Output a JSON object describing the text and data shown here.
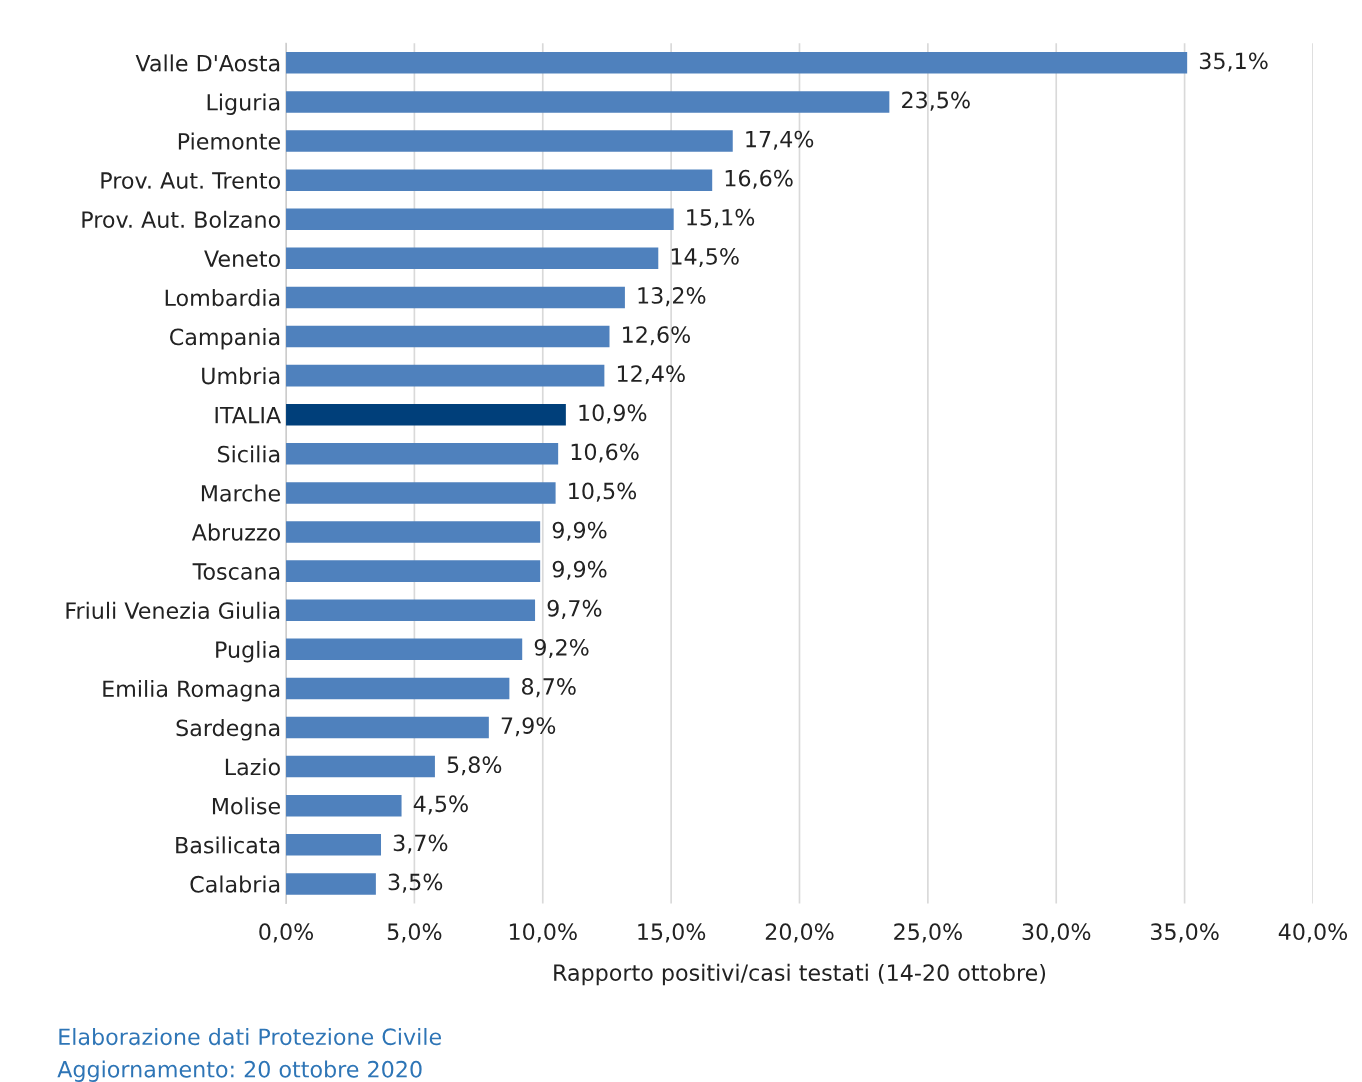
{
  "chart_data": {
    "type": "bar",
    "orientation": "horizontal",
    "xlabel": "Rapporto positivi/casi testati (14-20 ottobre)",
    "categories": [
      "Valle D'Aosta",
      "Liguria",
      "Piemonte",
      "Prov. Aut. Trento",
      "Prov. Aut. Bolzano",
      "Veneto",
      "Lombardia",
      "Campania",
      "Umbria",
      "ITALIA",
      "Sicilia",
      "Marche",
      "Abruzzo",
      "Toscana",
      "Friuli Venezia Giulia",
      "Puglia",
      "Emilia Romagna",
      "Sardegna",
      "Lazio",
      "Molise",
      "Basilicata",
      "Calabria"
    ],
    "values": [
      35.1,
      23.5,
      17.4,
      16.6,
      15.1,
      14.5,
      13.2,
      12.6,
      12.4,
      10.9,
      10.6,
      10.5,
      9.9,
      9.9,
      9.7,
      9.2,
      8.7,
      7.9,
      5.8,
      4.5,
      3.7,
      3.5
    ],
    "value_labels": [
      "35,1%",
      "23,5%",
      "17,4%",
      "16,6%",
      "15,1%",
      "14,5%",
      "13,2%",
      "12,6%",
      "12,4%",
      "10,9%",
      "10,6%",
      "10,5%",
      "9,9%",
      "9,9%",
      "9,7%",
      "9,2%",
      "8,7%",
      "7,9%",
      "5,8%",
      "4,5%",
      "3,7%",
      "3,5%"
    ],
    "colors": [
      "#4f81bd",
      "#4f81bd",
      "#4f81bd",
      "#4f81bd",
      "#4f81bd",
      "#4f81bd",
      "#4f81bd",
      "#4f81bd",
      "#4f81bd",
      "#003f7a",
      "#4f81bd",
      "#4f81bd",
      "#4f81bd",
      "#4f81bd",
      "#4f81bd",
      "#4f81bd",
      "#4f81bd",
      "#4f81bd",
      "#4f81bd",
      "#4f81bd",
      "#4f81bd",
      "#4f81bd"
    ],
    "xlim": [
      0,
      40
    ],
    "xticks": [
      {
        "value": 0,
        "label": "0,0%"
      },
      {
        "value": 5,
        "label": "5,0%"
      },
      {
        "value": 10,
        "label": "10,0%"
      },
      {
        "value": 15,
        "label": "15,0%"
      },
      {
        "value": 20,
        "label": "20,0%"
      },
      {
        "value": 25,
        "label": "25,0%"
      },
      {
        "value": 30,
        "label": "30,0%"
      },
      {
        "value": 35,
        "label": "35,0%"
      },
      {
        "value": 40,
        "label": "40,0%"
      }
    ],
    "grid": "x",
    "legend": false,
    "annotations": [
      "Elaborazione dati Protezione Civile",
      "Aggiornamento: 20 ottobre 2020"
    ]
  }
}
